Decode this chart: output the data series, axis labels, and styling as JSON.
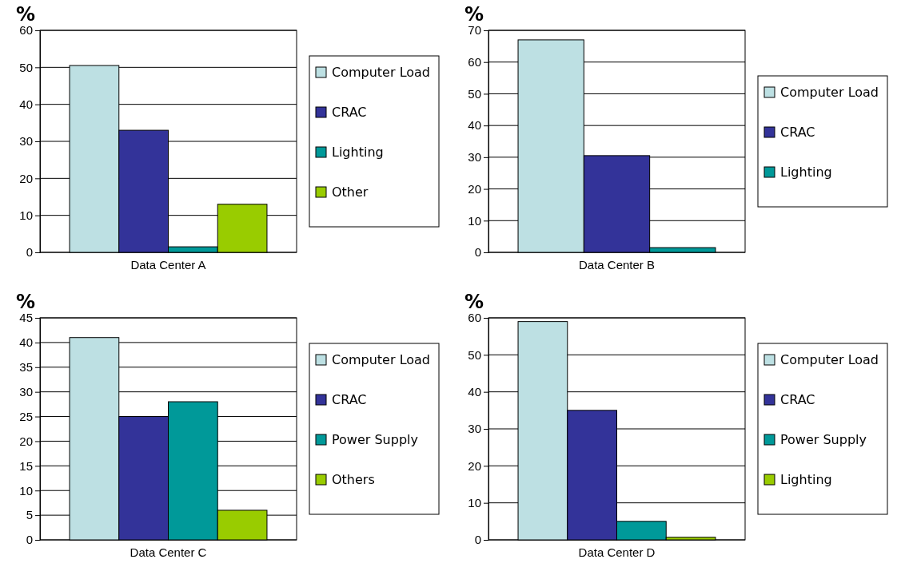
{
  "chart_data": [
    {
      "type": "bar",
      "ylabel": "%",
      "categories": [
        "Data Center A"
      ],
      "ylim": [
        0,
        60
      ],
      "yticks": [
        0,
        10,
        20,
        30,
        40,
        50,
        60
      ],
      "grid": "y",
      "legend": "right",
      "series": [
        {
          "name": "Computer Load",
          "color": "#bde0e3",
          "values": [
            50.5
          ]
        },
        {
          "name": "CRAC",
          "color": "#333399",
          "values": [
            33
          ]
        },
        {
          "name": "Lighting",
          "color": "#009999",
          "values": [
            1.5
          ]
        },
        {
          "name": "Other",
          "color": "#99cc00",
          "values": [
            13
          ]
        }
      ]
    },
    {
      "type": "bar",
      "ylabel": "%",
      "categories": [
        "Data Center B"
      ],
      "ylim": [
        0,
        70
      ],
      "yticks": [
        0,
        10,
        20,
        30,
        40,
        50,
        60,
        70
      ],
      "grid": "y",
      "legend": "right",
      "series": [
        {
          "name": "Computer Load",
          "color": "#bde0e3",
          "values": [
            67
          ]
        },
        {
          "name": "CRAC",
          "color": "#333399",
          "values": [
            30.5
          ]
        },
        {
          "name": "Lighting",
          "color": "#009999",
          "values": [
            1.5
          ]
        }
      ]
    },
    {
      "type": "bar",
      "ylabel": "%",
      "categories": [
        "Data Center C"
      ],
      "ylim": [
        0,
        45
      ],
      "yticks": [
        0,
        5,
        10,
        15,
        20,
        25,
        30,
        35,
        40,
        45
      ],
      "grid": "y",
      "legend": "right",
      "series": [
        {
          "name": "Computer Load",
          "color": "#bde0e3",
          "values": [
            41
          ]
        },
        {
          "name": "CRAC",
          "color": "#333399",
          "values": [
            25
          ]
        },
        {
          "name": "Power Supply",
          "color": "#009999",
          "values": [
            28
          ]
        },
        {
          "name": "Others",
          "color": "#99cc00",
          "values": [
            6
          ]
        }
      ]
    },
    {
      "type": "bar",
      "ylabel": "%",
      "categories": [
        "Data Center D"
      ],
      "ylim": [
        0,
        60
      ],
      "yticks": [
        0,
        10,
        20,
        30,
        40,
        50,
        60
      ],
      "grid": "y",
      "legend": "right",
      "series": [
        {
          "name": "Computer Load",
          "color": "#bde0e3",
          "values": [
            59
          ]
        },
        {
          "name": "CRAC",
          "color": "#333399",
          "values": [
            35
          ]
        },
        {
          "name": "Power Supply",
          "color": "#009999",
          "values": [
            5
          ]
        },
        {
          "name": "Lighting",
          "color": "#99cc00",
          "values": [
            0.7
          ]
        }
      ]
    }
  ]
}
